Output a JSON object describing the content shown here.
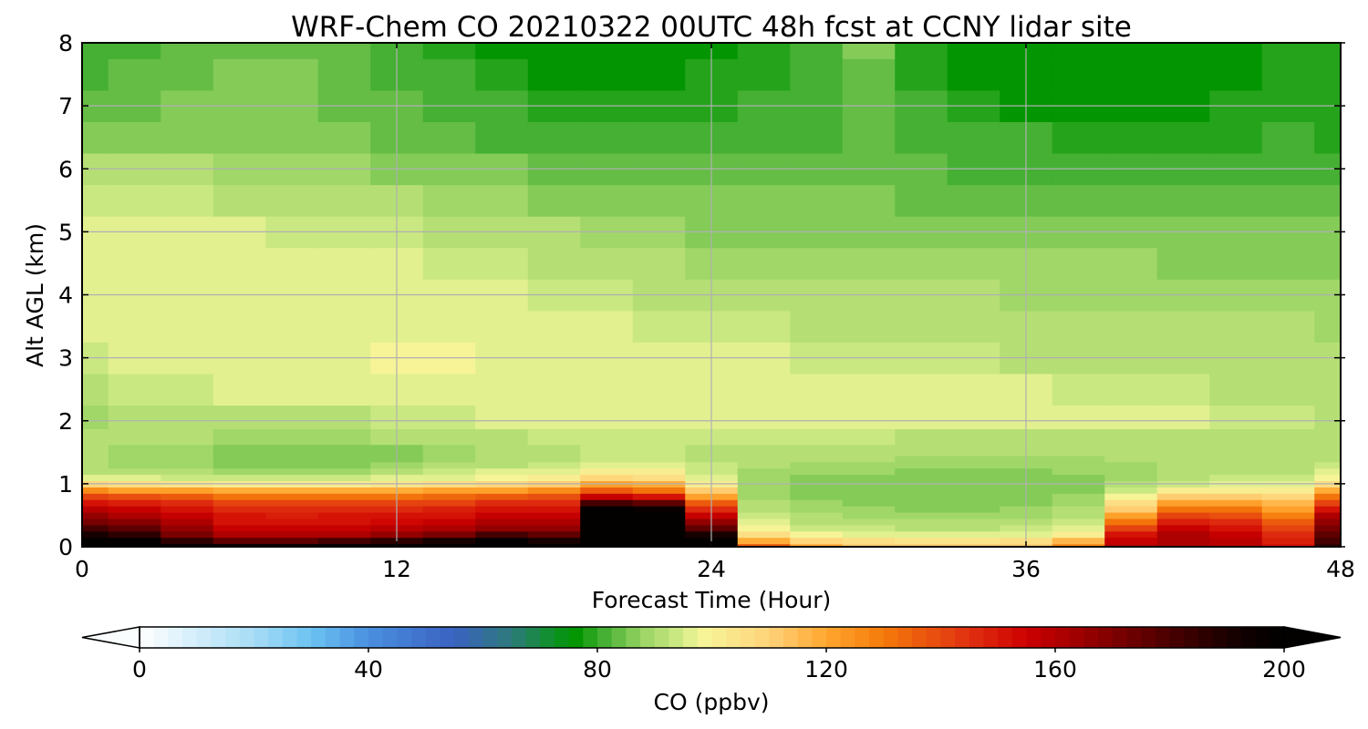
{
  "chart_data": {
    "type": "heatmap",
    "title": "WRF-Chem CO  20210322 00UTC 48h fcst at CCNY lidar site",
    "xlabel": "Forecast Time (Hour)",
    "ylabel": "Alt AGL (km)",
    "xlim": [
      0,
      48
    ],
    "ylim": [
      0,
      8
    ],
    "xticks": [
      0,
      12,
      24,
      36,
      48
    ],
    "yticks": [
      0,
      1,
      2,
      3,
      4,
      5,
      6,
      7,
      8
    ],
    "grid": true,
    "colorbar": {
      "label": "CO  (ppbv)",
      "min": 0,
      "max": 200,
      "ticks": [
        0,
        40,
        80,
        120,
        160,
        200
      ],
      "extend": "both",
      "stops": [
        {
          "v": 0,
          "color": "#ffffff"
        },
        {
          "v": 20,
          "color": "#a6dcf5"
        },
        {
          "v": 30,
          "color": "#6cc3f2"
        },
        {
          "v": 40,
          "color": "#4a8fe0"
        },
        {
          "v": 55,
          "color": "#3a62c0"
        },
        {
          "v": 65,
          "color": "#2d7a7a"
        },
        {
          "v": 72,
          "color": "#10902a"
        },
        {
          "v": 76,
          "color": "#009400"
        },
        {
          "v": 82,
          "color": "#4fb43a"
        },
        {
          "v": 88,
          "color": "#9ad464"
        },
        {
          "v": 95,
          "color": "#d4ec88"
        },
        {
          "v": 98,
          "color": "#f6f69a"
        },
        {
          "v": 110,
          "color": "#ffd37a"
        },
        {
          "v": 120,
          "color": "#ffa630"
        },
        {
          "v": 130,
          "color": "#f57a0a"
        },
        {
          "v": 145,
          "color": "#e03010"
        },
        {
          "v": 155,
          "color": "#cc0000"
        },
        {
          "v": 165,
          "color": "#9a0000"
        },
        {
          "v": 180,
          "color": "#4a0000"
        },
        {
          "v": 192,
          "color": "#120000"
        },
        {
          "v": 200,
          "color": "#000000"
        }
      ]
    },
    "x": [
      0,
      2,
      4,
      6,
      8,
      10,
      12,
      14,
      16,
      18,
      20,
      22,
      24,
      26,
      28,
      30,
      32,
      34,
      36,
      38,
      40,
      42,
      44,
      46,
      48
    ],
    "y": [
      0,
      0.1,
      0.2,
      0.3,
      0.4,
      0.5,
      0.6,
      0.7,
      0.8,
      0.9,
      1.0,
      1.1,
      1.2,
      1.3,
      1.4,
      1.5,
      1.75,
      2.0,
      2.5,
      3.0,
      3.5,
      4.0,
      4.5,
      5.0,
      5.5,
      6.0,
      6.5,
      7.0,
      7.5,
      8.0
    ],
    "z": [
      [
        215,
        210,
        200,
        198,
        198,
        200,
        205,
        210,
        220,
        200,
        240,
        235,
        220,
        135,
        118,
        112,
        110,
        110,
        112,
        125,
        158,
        162,
        158,
        150,
        185
      ],
      [
        205,
        200,
        185,
        175,
        175,
        180,
        185,
        190,
        200,
        190,
        240,
        235,
        205,
        118,
        108,
        105,
        104,
        104,
        105,
        115,
        155,
        162,
        158,
        148,
        180
      ],
      [
        190,
        185,
        170,
        160,
        160,
        162,
        165,
        170,
        180,
        175,
        235,
        230,
        190,
        105,
        98,
        97,
        96,
        96,
        97,
        102,
        150,
        160,
        155,
        145,
        175
      ],
      [
        180,
        175,
        165,
        155,
        155,
        156,
        158,
        160,
        165,
        165,
        230,
        225,
        175,
        98,
        94,
        93,
        92,
        92,
        93,
        96,
        140,
        155,
        150,
        140,
        170
      ],
      [
        172,
        168,
        160,
        152,
        150,
        152,
        154,
        155,
        160,
        160,
        225,
        220,
        165,
        95,
        92,
        91,
        90,
        90,
        91,
        93,
        130,
        148,
        145,
        135,
        165
      ],
      [
        165,
        160,
        155,
        150,
        148,
        150,
        150,
        152,
        155,
        155,
        215,
        210,
        155,
        93,
        90,
        89,
        88,
        88,
        89,
        91,
        120,
        140,
        138,
        128,
        160
      ],
      [
        158,
        155,
        150,
        145,
        145,
        145,
        146,
        148,
        150,
        150,
        200,
        195,
        145,
        91,
        89,
        88,
        87,
        87,
        88,
        90,
        112,
        132,
        130,
        122,
        150
      ],
      [
        150,
        148,
        145,
        140,
        140,
        140,
        140,
        142,
        145,
        145,
        180,
        175,
        135,
        90,
        88,
        87,
        86,
        86,
        87,
        89,
        105,
        122,
        120,
        115,
        140
      ],
      [
        140,
        138,
        136,
        132,
        132,
        132,
        132,
        134,
        136,
        138,
        155,
        150,
        122,
        89,
        87,
        86,
        86,
        86,
        86,
        88,
        98,
        112,
        110,
        108,
        130
      ],
      [
        125,
        122,
        120,
        118,
        118,
        118,
        118,
        120,
        122,
        125,
        135,
        130,
        110,
        88,
        87,
        86,
        85,
        85,
        86,
        87,
        93,
        100,
        100,
        100,
        118
      ],
      [
        108,
        106,
        104,
        102,
        102,
        102,
        104,
        106,
        108,
        110,
        120,
        118,
        100,
        88,
        87,
        86,
        85,
        85,
        86,
        87,
        90,
        94,
        96,
        96,
        105
      ],
      [
        96,
        95,
        94,
        93,
        93,
        93,
        95,
        97,
        99,
        100,
        108,
        106,
        96,
        88,
        87,
        87,
        86,
        86,
        86,
        87,
        89,
        91,
        93,
        94,
        98
      ],
      [
        92,
        91,
        90,
        89,
        89,
        89,
        91,
        93,
        95,
        96,
        100,
        100,
        94,
        89,
        88,
        88,
        87,
        87,
        87,
        88,
        89,
        90,
        91,
        92,
        95
      ],
      [
        90,
        89,
        88,
        87,
        87,
        87,
        89,
        90,
        92,
        93,
        96,
        96,
        93,
        90,
        89,
        89,
        88,
        88,
        88,
        89,
        89,
        90,
        90,
        91,
        93
      ],
      [
        90,
        89,
        88,
        86,
        85,
        85,
        87,
        88,
        90,
        92,
        94,
        94,
        92,
        91,
        90,
        90,
        89,
        89,
        89,
        89,
        90,
        90,
        90,
        91,
        92
      ],
      [
        90,
        89,
        89,
        87,
        86,
        86,
        87,
        88,
        90,
        92,
        93,
        93,
        92,
        91,
        91,
        91,
        90,
        90,
        90,
        90,
        90,
        90,
        91,
        91,
        92
      ],
      [
        90,
        90,
        90,
        89,
        89,
        89,
        90,
        91,
        92,
        93,
        94,
        94,
        93,
        93,
        93,
        93,
        92,
        92,
        92,
        92,
        92,
        91,
        91,
        92,
        92
      ],
      [
        89,
        91,
        92,
        92,
        92,
        92,
        93,
        94,
        95,
        96,
        96,
        96,
        96,
        96,
        96,
        96,
        96,
        96,
        96,
        96,
        96,
        95,
        94,
        93,
        92
      ],
      [
        92,
        93,
        94,
        95,
        95,
        95,
        96,
        96,
        96,
        96,
        96,
        96,
        96,
        96,
        95,
        95,
        95,
        95,
        95,
        94,
        94,
        93,
        92,
        92,
        91
      ],
      [
        94,
        95,
        96,
        96,
        97,
        97,
        98,
        98,
        97,
        97,
        96,
        96,
        95,
        95,
        94,
        94,
        93,
        93,
        92,
        92,
        92,
        91,
        91,
        91,
        90
      ],
      [
        95,
        96,
        96,
        97,
        97,
        97,
        97,
        97,
        96,
        96,
        95,
        94,
        93,
        93,
        92,
        92,
        91,
        91,
        91,
        91,
        91,
        90,
        90,
        90,
        89
      ],
      [
        96,
        96,
        97,
        97,
        97,
        97,
        97,
        96,
        95,
        94,
        93,
        92,
        91,
        91,
        90,
        90,
        90,
        90,
        89,
        89,
        89,
        89,
        89,
        89,
        88
      ],
      [
        96,
        96,
        96,
        96,
        96,
        96,
        95,
        94,
        93,
        92,
        91,
        90,
        89,
        89,
        89,
        88,
        88,
        88,
        88,
        88,
        88,
        87,
        87,
        87,
        87
      ],
      [
        95,
        95,
        95,
        95,
        94,
        94,
        93,
        92,
        91,
        90,
        89,
        88,
        87,
        87,
        87,
        86,
        86,
        86,
        86,
        86,
        86,
        86,
        86,
        85,
        85
      ],
      [
        93,
        93,
        93,
        92,
        92,
        91,
        90,
        89,
        88,
        87,
        86,
        86,
        85,
        85,
        85,
        85,
        84,
        84,
        84,
        84,
        84,
        84,
        83,
        83,
        83
      ],
      [
        90,
        90,
        90,
        89,
        89,
        88,
        87,
        86,
        85,
        84,
        84,
        83,
        83,
        83,
        84,
        84,
        83,
        82,
        82,
        81,
        81,
        81,
        81,
        81,
        80
      ],
      [
        87,
        87,
        87,
        86,
        86,
        85,
        84,
        83,
        82,
        81,
        81,
        81,
        81,
        81,
        82,
        83,
        81,
        80,
        80,
        79,
        79,
        79,
        79,
        80,
        79
      ],
      [
        84,
        84,
        85,
        85,
        85,
        84,
        83,
        81,
        80,
        79,
        79,
        79,
        79,
        80,
        82,
        84,
        80,
        78,
        77,
        77,
        77,
        77,
        78,
        79,
        79
      ],
      [
        82,
        83,
        84,
        85,
        85,
        84,
        82,
        80,
        78,
        77,
        77,
        77,
        78,
        79,
        82,
        84,
        79,
        77,
        76,
        76,
        76,
        76,
        77,
        78,
        79
      ],
      [
        81,
        82,
        83,
        84,
        84,
        83,
        81,
        79,
        77,
        76,
        76,
        76,
        77,
        79,
        82,
        85,
        79,
        76,
        76,
        75,
        75,
        76,
        77,
        78,
        79
      ]
    ]
  }
}
